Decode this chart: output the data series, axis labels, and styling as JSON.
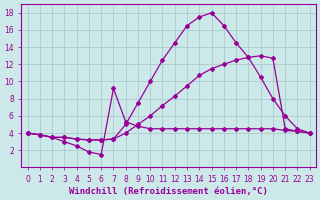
{
  "background_color": "#cce8e8",
  "grid_color": "#aacccc",
  "line_color": "#990099",
  "xlabel": "Windchill (Refroidissement éolien,°C)",
  "xlim": [
    -0.5,
    23.5
  ],
  "ylim": [
    0,
    19
  ],
  "yticks": [
    2,
    4,
    6,
    8,
    10,
    12,
    14,
    16,
    18
  ],
  "xticks": [
    0,
    1,
    2,
    3,
    4,
    5,
    6,
    7,
    8,
    9,
    10,
    11,
    12,
    13,
    14,
    15,
    16,
    17,
    18,
    19,
    20,
    21,
    22,
    23
  ],
  "line1_x": [
    0,
    1,
    2,
    3,
    4,
    5,
    6,
    7,
    8,
    9,
    10,
    11,
    12,
    13,
    14,
    15,
    16,
    17,
    18,
    19,
    20,
    21,
    22,
    23
  ],
  "line1_y": [
    4.0,
    3.8,
    3.5,
    3.5,
    3.3,
    3.2,
    3.2,
    3.3,
    5.0,
    7.5,
    10.0,
    12.5,
    14.5,
    16.5,
    17.5,
    18.0,
    16.5,
    14.5,
    12.8,
    10.5,
    8.0,
    6.0,
    4.5,
    4.0
  ],
  "line2_x": [
    0,
    1,
    2,
    3,
    4,
    5,
    6,
    7,
    8,
    9,
    10,
    11,
    12,
    13,
    14,
    15,
    16,
    17,
    18,
    19,
    20,
    21,
    22,
    23
  ],
  "line2_y": [
    4.0,
    3.8,
    3.5,
    3.5,
    3.3,
    3.2,
    3.2,
    3.3,
    4.0,
    5.0,
    6.0,
    7.2,
    8.3,
    9.5,
    10.7,
    11.5,
    12.0,
    12.5,
    12.8,
    13.0,
    12.7,
    4.5,
    4.2,
    4.0
  ],
  "line3_x": [
    0,
    1,
    2,
    3,
    4,
    5,
    6,
    7,
    8,
    9,
    10,
    11,
    12,
    13,
    14,
    15,
    16,
    17,
    18,
    19,
    20,
    21,
    22,
    23
  ],
  "line3_y": [
    4.0,
    3.8,
    3.5,
    3.0,
    2.5,
    1.8,
    1.5,
    9.2,
    5.3,
    4.8,
    4.5,
    4.5,
    4.5,
    4.5,
    4.5,
    4.5,
    4.5,
    4.5,
    4.5,
    4.5,
    4.5,
    4.3,
    4.2,
    4.0
  ],
  "marker": "D",
  "marker_size": 2.0,
  "line_width": 0.9,
  "xlabel_fontsize": 6.5,
  "tick_fontsize": 5.5,
  "xlabel_color": "#990099",
  "tick_color": "#990099",
  "axis_color": "#990099"
}
